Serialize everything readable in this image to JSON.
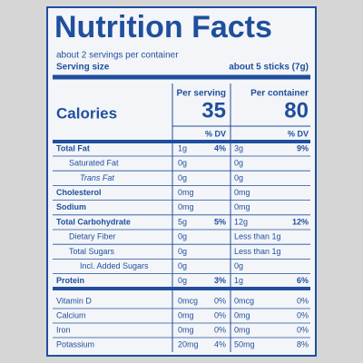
{
  "header": {
    "title": "Nutrition Facts",
    "servings": "about 2 servings per container",
    "serving_size_label": "Serving size",
    "serving_size_value": "about 5 sticks (7g)"
  },
  "columns": [
    "Per serving",
    "Per container"
  ],
  "calories": {
    "label": "Calories",
    "per_serving": "35",
    "per_container": "80"
  },
  "dv_headers": [
    "% DV",
    "% DV"
  ],
  "rows": [
    {
      "name": "Total Fat",
      "per_serving": "1g",
      "per_serving_dv": "4%",
      "per_container": "3g",
      "per_container_dv": "9%"
    },
    {
      "name": "Saturated Fat",
      "per_serving": "0g",
      "per_container": "0g"
    },
    {
      "name": "Trans Fat",
      "per_serving": "0g",
      "per_container": "0g"
    },
    {
      "name": "Cholesterol",
      "per_serving": "0mg",
      "per_container": "0mg"
    },
    {
      "name": "Sodium",
      "per_serving": "0mg",
      "per_container": "0mg"
    },
    {
      "name": "Total Carbohydrate",
      "per_serving": "5g",
      "per_serving_dv": "5%",
      "per_container": "12g",
      "per_container_dv": "12%"
    },
    {
      "name": "Dietary Fiber",
      "per_serving": "0g",
      "per_container": "Less than 1g"
    },
    {
      "name": "Total Sugars",
      "per_serving": "0g",
      "per_container": "Less than 1g"
    },
    {
      "name": "Incl. Added Sugars",
      "per_serving": "0g",
      "per_container": "0g"
    },
    {
      "name": "Protein",
      "per_serving": "0g",
      "per_serving_dv": "3%",
      "per_container": "1g",
      "per_container_dv": "6%"
    }
  ],
  "vitamins": [
    {
      "name": "Vitamin D",
      "per_serving": "0mcg",
      "per_serving_dv": "0%",
      "per_container": "0mcg",
      "per_container_dv": "0%"
    },
    {
      "name": "Calcium",
      "per_serving": "0mg",
      "per_serving_dv": "0%",
      "per_container": "0mg",
      "per_container_dv": "0%"
    },
    {
      "name": "Iron",
      "per_serving": "0mg",
      "per_serving_dv": "0%",
      "per_container": "0mg",
      "per_container_dv": "0%"
    },
    {
      "name": "Potassium",
      "per_serving": "20mg",
      "per_serving_dv": "4%",
      "per_container": "50mg",
      "per_container_dv": "8%"
    }
  ]
}
